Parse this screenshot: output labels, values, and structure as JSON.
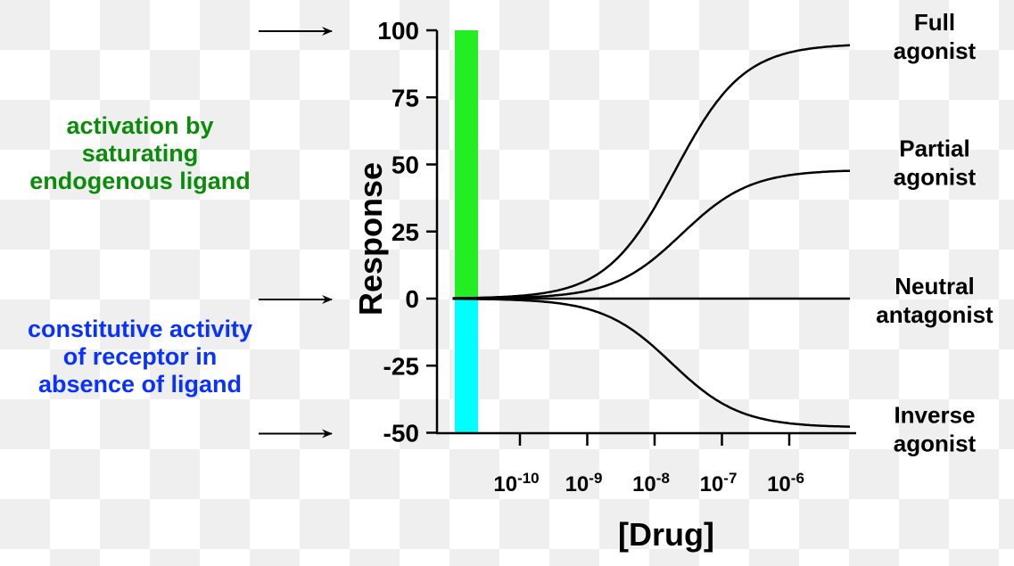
{
  "chart_data": {
    "type": "line",
    "xlabel": "[Drug]",
    "ylabel": "Response",
    "x_scale": "log",
    "x_ticks": [
      -10,
      -9,
      -8,
      -7,
      -6
    ],
    "x_tick_labels": [
      {
        "base": "10",
        "exp": "-10"
      },
      {
        "base": "10",
        "exp": "-9"
      },
      {
        "base": "10",
        "exp": "-8"
      },
      {
        "base": "10",
        "exp": "-7"
      },
      {
        "base": "10",
        "exp": "-6"
      }
    ],
    "y_ticks": [
      100,
      75,
      50,
      25,
      0,
      -25,
      -50
    ],
    "y_tick_labels": [
      "100",
      "75",
      "50",
      "25",
      "0",
      "-25",
      "-50"
    ],
    "ylim": [
      -50,
      100
    ],
    "xlim_log10": [
      -11,
      -5.1
    ],
    "grid": false,
    "bars": [
      {
        "from": 0,
        "to": 100,
        "color": "#22ee22"
      },
      {
        "from": -50,
        "to": 0,
        "color": "#00ffff"
      }
    ],
    "series": [
      {
        "name": "Full agonist",
        "label_lines": [
          "Full",
          "agonist"
        ],
        "emax": 95,
        "log_ec50": -7.7,
        "hill": 0.85
      },
      {
        "name": "Partial agonist",
        "label_lines": [
          "Partial",
          "agonist"
        ],
        "emax": 48,
        "log_ec50": -7.6,
        "hill": 0.85
      },
      {
        "name": "Neutral antagonist",
        "label_lines": [
          "Neutral",
          "antagonist"
        ],
        "emax": 0,
        "log_ec50": -7.7,
        "hill": 0.85
      },
      {
        "name": "Inverse agonist",
        "label_lines": [
          "Inverse",
          "agonist"
        ],
        "emax": -48,
        "log_ec50": -7.75,
        "hill": 0.85
      }
    ]
  },
  "annotations": {
    "activation": {
      "lines": [
        "activation by",
        "saturating",
        "endogenous ligand"
      ],
      "color": "#0a8c0a"
    },
    "constitutive": {
      "lines": [
        "constitutive activity",
        "of receptor in",
        "absence of ligand"
      ],
      "color": "#0a32ff"
    },
    "arrows_at_response": [
      100,
      0,
      -50
    ]
  }
}
